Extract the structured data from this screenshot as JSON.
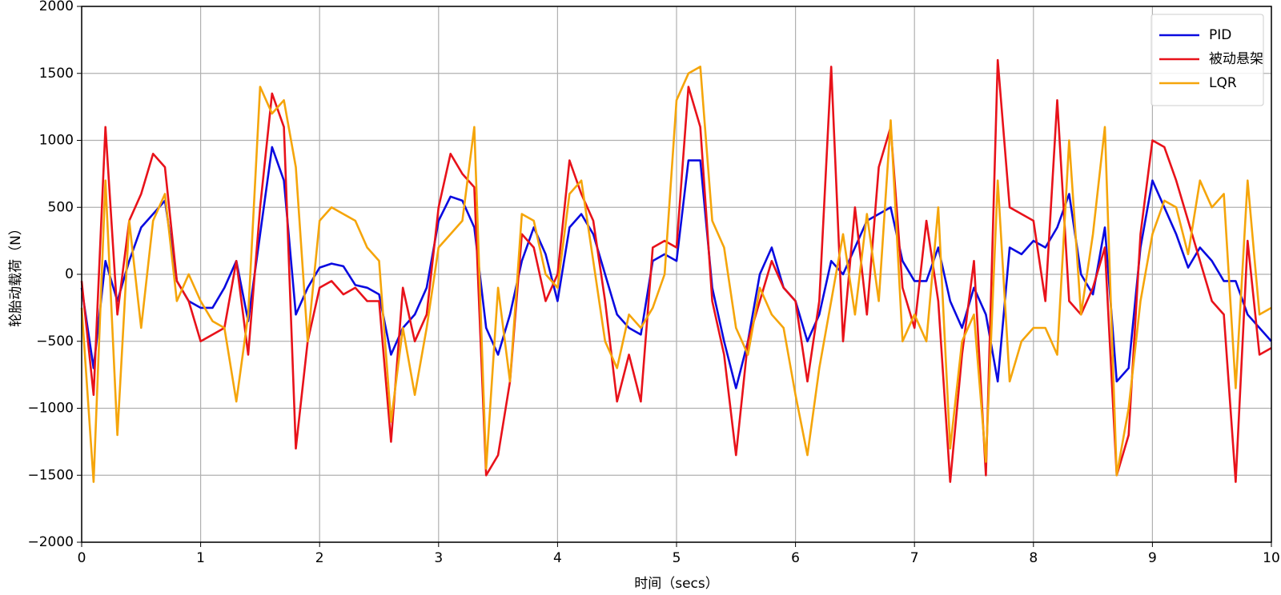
{
  "chart_data": {
    "type": "line",
    "xlabel": "时间（secs）",
    "ylabel": "轮胎动载荷（N）",
    "xlim": [
      0,
      10
    ],
    "ylim": [
      -2000,
      2000
    ],
    "xticks": [
      0,
      1,
      2,
      3,
      4,
      5,
      6,
      7,
      8,
      9,
      10
    ],
    "yticks": [
      {
        "value": -2000,
        "label": "−2000"
      },
      {
        "value": -1500,
        "label": "−1500"
      },
      {
        "value": -1000,
        "label": "−1000"
      },
      {
        "value": -500,
        "label": "−500"
      },
      0,
      500,
      1000,
      1500,
      2000
    ],
    "grid": true,
    "legend": "upper right",
    "x": [
      0,
      0.1,
      0.2,
      0.3,
      0.4,
      0.5,
      0.6,
      0.7,
      0.8,
      0.9,
      1,
      1.1,
      1.2,
      1.3,
      1.4,
      1.5,
      1.6,
      1.7,
      1.8,
      1.9,
      2,
      2.1,
      2.2,
      2.3,
      2.4,
      2.5,
      2.6,
      2.7,
      2.8,
      2.9,
      3,
      3.1,
      3.2,
      3.3,
      3.4,
      3.5,
      3.6,
      3.7,
      3.8,
      3.9,
      4,
      4.1,
      4.2,
      4.3,
      4.4,
      4.5,
      4.6,
      4.7,
      4.8,
      4.9,
      5,
      5.1,
      5.2,
      5.3,
      5.4,
      5.5,
      5.6,
      5.7,
      5.8,
      5.9,
      6,
      6.1,
      6.2,
      6.3,
      6.4,
      6.5,
      6.6,
      6.7,
      6.8,
      6.9,
      7,
      7.1,
      7.2,
      7.3,
      7.4,
      7.5,
      7.6,
      7.7,
      7.8,
      7.9,
      8,
      8.1,
      8.2,
      8.3,
      8.4,
      8.5,
      8.6,
      8.7,
      8.8,
      8.9,
      9,
      9.1,
      9.2,
      9.3,
      9.4,
      9.5,
      9.6,
      9.7,
      9.8,
      9.9,
      10
    ],
    "series": [
      {
        "name": "PID",
        "color": "#0a0ae0",
        "values": [
          -100,
          -700,
          100,
          -200,
          100,
          350,
          450,
          550,
          -50,
          -200,
          -250,
          -250,
          -100,
          100,
          -350,
          300,
          950,
          700,
          -300,
          -100,
          50,
          80,
          60,
          -80,
          -100,
          -150,
          -600,
          -400,
          -300,
          -100,
          400,
          580,
          550,
          350,
          -400,
          -600,
          -300,
          100,
          350,
          150,
          -200,
          350,
          450,
          300,
          0,
          -300,
          -400,
          -450,
          100,
          150,
          100,
          850,
          850,
          -100,
          -500,
          -850,
          -500,
          0,
          200,
          -100,
          -200,
          -500,
          -300,
          100,
          0,
          200,
          400,
          450,
          500,
          100,
          -50,
          -50,
          200,
          -200,
          -400,
          -100,
          -300,
          -800,
          200,
          150,
          250,
          200,
          350,
          600,
          0,
          -150,
          350,
          -800,
          -700,
          200,
          700,
          500,
          300,
          50,
          200,
          100,
          -50,
          -50,
          -300,
          -400,
          -500
        ]
      },
      {
        "name": "被动悬架",
        "color": "#e8121a",
        "values": [
          -50,
          -900,
          1100,
          -300,
          400,
          600,
          900,
          800,
          -50,
          -200,
          -500,
          -450,
          -400,
          100,
          -600,
          500,
          1350,
          1100,
          -1300,
          -500,
          -100,
          -50,
          -150,
          -100,
          -200,
          -200,
          -1250,
          -100,
          -500,
          -300,
          500,
          900,
          750,
          650,
          -1500,
          -1350,
          -800,
          300,
          200,
          -200,
          0,
          850,
          600,
          400,
          -200,
          -950,
          -600,
          -950,
          200,
          250,
          200,
          1400,
          1100,
          -200,
          -600,
          -1350,
          -500,
          -200,
          100,
          -100,
          -200,
          -800,
          -200,
          1550,
          -500,
          500,
          -300,
          800,
          1100,
          -100,
          -400,
          400,
          -200,
          -1550,
          -600,
          100,
          -1500,
          1600,
          500,
          450,
          400,
          -200,
          1300,
          -200,
          -300,
          -100,
          200,
          -1500,
          -1200,
          300,
          1000,
          950,
          700,
          400,
          100,
          -200,
          -300,
          -1550,
          250,
          -600,
          -550
        ]
      },
      {
        "name": "LQR",
        "color": "#f5a50a",
        "values": [
          -250,
          -1550,
          700,
          -1200,
          400,
          -400,
          400,
          600,
          -200,
          0,
          -200,
          -350,
          -400,
          -950,
          -300,
          1400,
          1200,
          1300,
          800,
          -500,
          400,
          500,
          450,
          400,
          200,
          100,
          -1100,
          -400,
          -900,
          -400,
          200,
          300,
          400,
          1100,
          -1450,
          -100,
          -800,
          450,
          400,
          0,
          -100,
          600,
          700,
          100,
          -500,
          -700,
          -300,
          -400,
          -250,
          0,
          1300,
          1500,
          1550,
          400,
          200,
          -400,
          -600,
          -100,
          -300,
          -400,
          -900,
          -1350,
          -700,
          -200,
          300,
          -300,
          450,
          -200,
          1150,
          -500,
          -300,
          -500,
          500,
          -1300,
          -500,
          -300,
          -1400,
          700,
          -800,
          -500,
          -400,
          -400,
          -600,
          1000,
          -300,
          300,
          1100,
          -1500,
          -1000,
          -200,
          300,
          550,
          500,
          150,
          700,
          500,
          600,
          -850,
          700,
          -300,
          -250
        ]
      }
    ]
  }
}
